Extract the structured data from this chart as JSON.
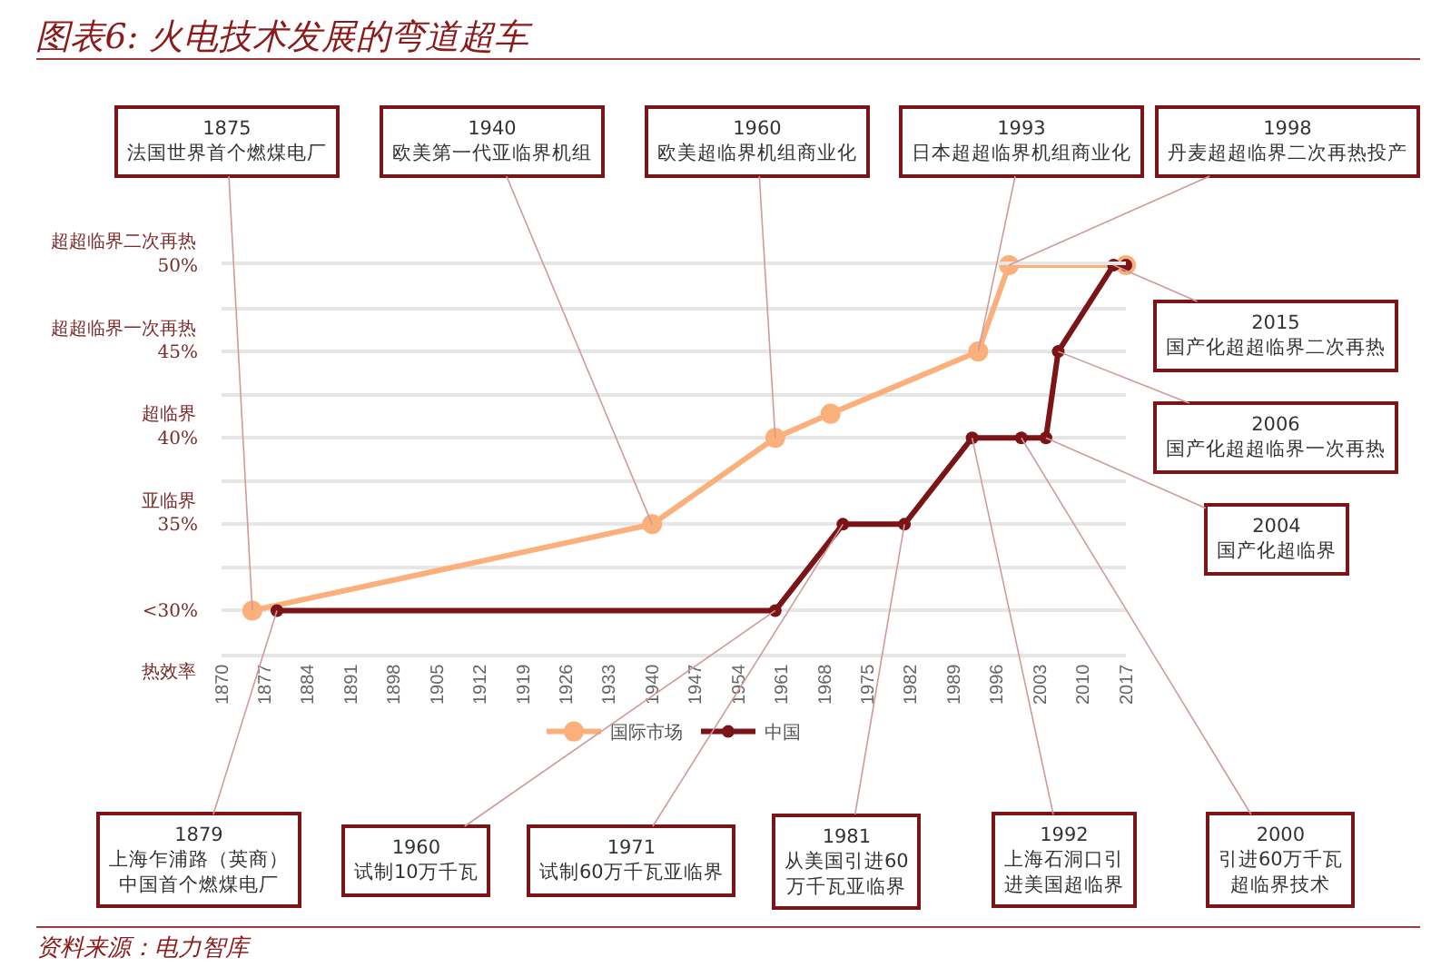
{
  "chart_data": {
    "type": "line",
    "title": "图表6: 火电技术发展的弯道超车",
    "ylabel": "热效率",
    "xlim": [
      1870,
      2017
    ],
    "xticks": [
      1870,
      1877,
      1884,
      1891,
      1898,
      1905,
      1912,
      1919,
      1926,
      1933,
      1940,
      1947,
      1954,
      1961,
      1968,
      1975,
      1982,
      1989,
      1996,
      2003,
      2010,
      2017
    ],
    "ylim": [
      27.5,
      50
    ],
    "yticks": [
      {
        "value": 27.5,
        "label": null
      },
      {
        "value": 30,
        "label": "<30%"
      },
      {
        "value": 32.5,
        "label": null
      },
      {
        "value": 35,
        "label": "35%"
      },
      {
        "value": 37.5,
        "label": null
      },
      {
        "value": 40,
        "label": "40%"
      },
      {
        "value": 42.5,
        "label": null
      },
      {
        "value": 45,
        "label": "45%"
      },
      {
        "value": 47.5,
        "label": null
      },
      {
        "value": 50,
        "label": "50%"
      }
    ],
    "grid": "y",
    "marker": "circle",
    "legend": "bottom",
    "line_style": "solid",
    "series": [
      {
        "name": "国际市场",
        "color": "#fbb07c",
        "x": [
          1875,
          1940,
          1960,
          1969,
          1993,
          1998,
          2017
        ],
        "values": [
          30,
          35,
          40,
          41.4,
          45,
          50,
          50
        ]
      },
      {
        "name": "中国",
        "color": "#7b1416",
        "x": [
          1879,
          1960,
          1971,
          1981,
          1992,
          2000,
          2004,
          2006,
          2015,
          2017
        ],
        "values": [
          30,
          30,
          35,
          35,
          40,
          40,
          40,
          45,
          50,
          50
        ]
      }
    ],
    "annotations": [
      "超超临界二次再热",
      "超超临界一次再热",
      "超临界",
      "亚临界",
      {
        "text": "1875\n法国世界首个燃煤电厂",
        "x": 1875,
        "y": 30
      },
      {
        "text": "1940\n欧美第一代亚临界机组",
        "x": 1940,
        "y": 35
      },
      {
        "text": "1960\n欧美超临界机组商业化",
        "x": 1960,
        "y": 40
      },
      {
        "text": "1993\n日本超超临界机组商业化",
        "x": 1993,
        "y": 45
      },
      {
        "text": "1998\n丹麦超超临界二次再热投产",
        "x": 1998,
        "y": 50
      },
      {
        "text": "2015\n国产化超超临界二次再热",
        "x": 2015,
        "y": 50
      },
      {
        "text": "2006\n国产化超超临界一次再热",
        "x": 2006,
        "y": 45
      },
      {
        "text": "2004\n国产化超临界",
        "x": 2004,
        "y": 40
      },
      {
        "text": "1879\n上海乍浦路（英商）中国首个燃煤电厂",
        "x": 1879,
        "y": 30
      },
      {
        "text": "1960\n试制10万千瓦",
        "x": 1960,
        "y": 30
      },
      {
        "text": "1971\n试制60万千瓦亚临界",
        "x": 1971,
        "y": 35
      },
      {
        "text": "1981\n从美国引进60万千瓦亚临界",
        "x": 1981,
        "y": 35
      },
      {
        "text": "1992\n上海石洞口引进美国超临界",
        "x": 1992,
        "y": 40
      },
      {
        "text": "2000\n引进60万千瓦超临界技术",
        "x": 2000,
        "y": 40
      },
      "资料来源：电力智库"
    ]
  }
}
